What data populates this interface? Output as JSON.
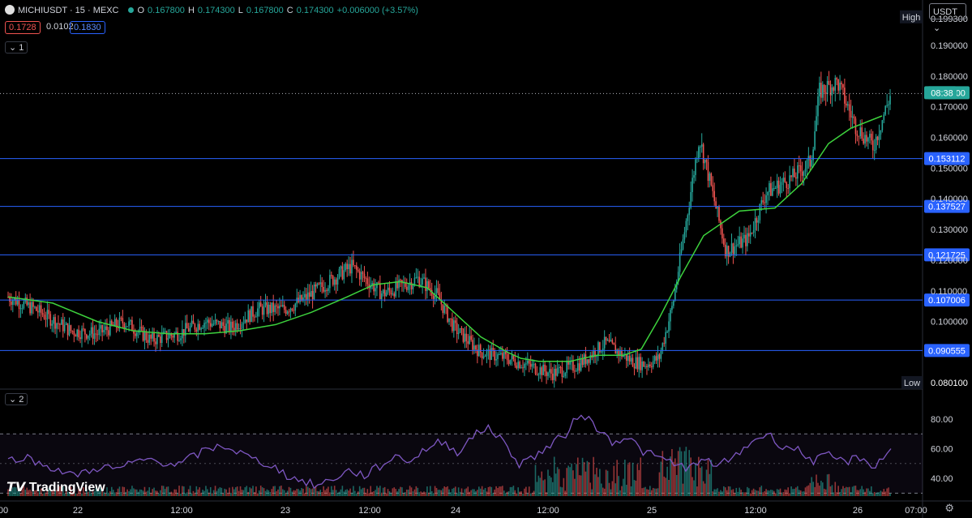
{
  "header": {
    "symbol": "MICHIUSDT · 15 · MEXC",
    "open_label": "O",
    "open": "0.167800",
    "high_label": "H",
    "high": "0.174300",
    "low_label": "L",
    "low": "0.167800",
    "close_label": "C",
    "close": "0.174300",
    "change": "+0.006000 (+3.57%)",
    "sell_price": "0.1728",
    "spread": "0.0102",
    "buy_price": "0.1830",
    "pane1_tag": "1",
    "pane2_tag": "2"
  },
  "currency_button": "USDT",
  "branding": "TradingView",
  "price_scale": {
    "high_label": "High",
    "high_value": "0.199300",
    "low_label": "Low",
    "low_value": "0.080100",
    "current_price": "0.174300",
    "countdown": "08:38"
  },
  "colors": {
    "up": "#26a69a",
    "down": "#ef5350",
    "ma": "#3dd23d",
    "hline": "#2962ff",
    "rsi": "#7e57c2",
    "background": "#000000"
  },
  "chart_data": [
    {
      "type": "candlestick",
      "title": "MICHIUSDT · 15 · MEXC",
      "x_ticks": [
        "00",
        "22",
        "12:00",
        "23",
        "12:00",
        "24",
        "12:00",
        "25",
        "12:00",
        "26",
        "07:00"
      ],
      "y_ticks": [
        0.1,
        0.11,
        0.12,
        0.13,
        0.14,
        0.15,
        0.16,
        0.17,
        0.18,
        0.19
      ],
      "ylim": [
        0.0785,
        0.1995
      ],
      "grid": false,
      "horizontal_levels": [
        0.153112,
        0.137527,
        0.121725,
        0.107006,
        0.090555
      ],
      "session_high": 0.1993,
      "session_low": 0.0801,
      "last_close": 0.1743,
      "ma_series": {
        "x": [
          0,
          0.5,
          1,
          1.4,
          1.8,
          2.2,
          2.6,
          3.0,
          3.4,
          3.8,
          4.1,
          4.4,
          4.7,
          5.0,
          5.3,
          5.6,
          5.75,
          5.95,
          6.3,
          6.6,
          6.9,
          7.1,
          7.3,
          7.55,
          7.8,
          8.2,
          8.6,
          8.9,
          9.2,
          9.45,
          9.8
        ],
        "values": [
          0.108,
          0.106,
          0.1,
          0.097,
          0.096,
          0.096,
          0.097,
          0.099,
          0.103,
          0.108,
          0.112,
          0.113,
          0.111,
          0.103,
          0.095,
          0.09,
          0.088,
          0.087,
          0.087,
          0.089,
          0.089,
          0.091,
          0.101,
          0.115,
          0.128,
          0.136,
          0.137,
          0.145,
          0.158,
          0.163,
          0.167
        ]
      },
      "price_path": {
        "x": [
          0,
          0.3,
          0.7,
          1.0,
          1.3,
          1.6,
          1.9,
          2.2,
          2.5,
          2.8,
          3.1,
          3.3,
          3.6,
          3.85,
          4.0,
          4.2,
          4.45,
          4.6,
          4.8,
          5.0,
          5.3,
          5.6,
          5.9,
          6.1,
          6.4,
          6.7,
          7.0,
          7.15,
          7.3,
          7.45,
          7.6,
          7.75,
          7.85,
          8.05,
          8.3,
          8.5,
          8.8,
          9.0,
          9.1,
          9.3,
          9.5,
          9.7,
          9.9
        ],
        "values": [
          0.108,
          0.104,
          0.097,
          0.096,
          0.1,
          0.094,
          0.096,
          0.1,
          0.098,
          0.104,
          0.104,
          0.107,
          0.113,
          0.118,
          0.114,
          0.109,
          0.112,
          0.114,
          0.109,
          0.098,
          0.09,
          0.088,
          0.085,
          0.083,
          0.086,
          0.093,
          0.087,
          0.086,
          0.088,
          0.105,
          0.132,
          0.16,
          0.148,
          0.123,
          0.127,
          0.142,
          0.147,
          0.152,
          0.175,
          0.178,
          0.164,
          0.157,
          0.1743
        ]
      }
    },
    {
      "type": "line",
      "title": "RSI",
      "y_ticks": [
        40,
        60,
        80
      ],
      "ylim": [
        28,
        92
      ],
      "bands": [
        70,
        30
      ],
      "values": [
        52,
        55,
        50,
        47,
        42,
        44,
        48,
        46,
        50,
        53,
        51,
        49,
        55,
        60,
        62,
        57,
        52,
        49,
        42,
        38,
        35,
        40,
        45,
        42,
        48,
        55,
        52,
        60,
        65,
        58,
        68,
        75,
        64,
        50,
        55,
        62,
        70,
        85,
        74,
        65,
        68,
        58,
        54,
        50,
        47,
        52,
        49,
        55,
        65,
        70,
        62,
        59,
        52,
        55,
        51,
        54,
        48,
        60
      ]
    }
  ]
}
